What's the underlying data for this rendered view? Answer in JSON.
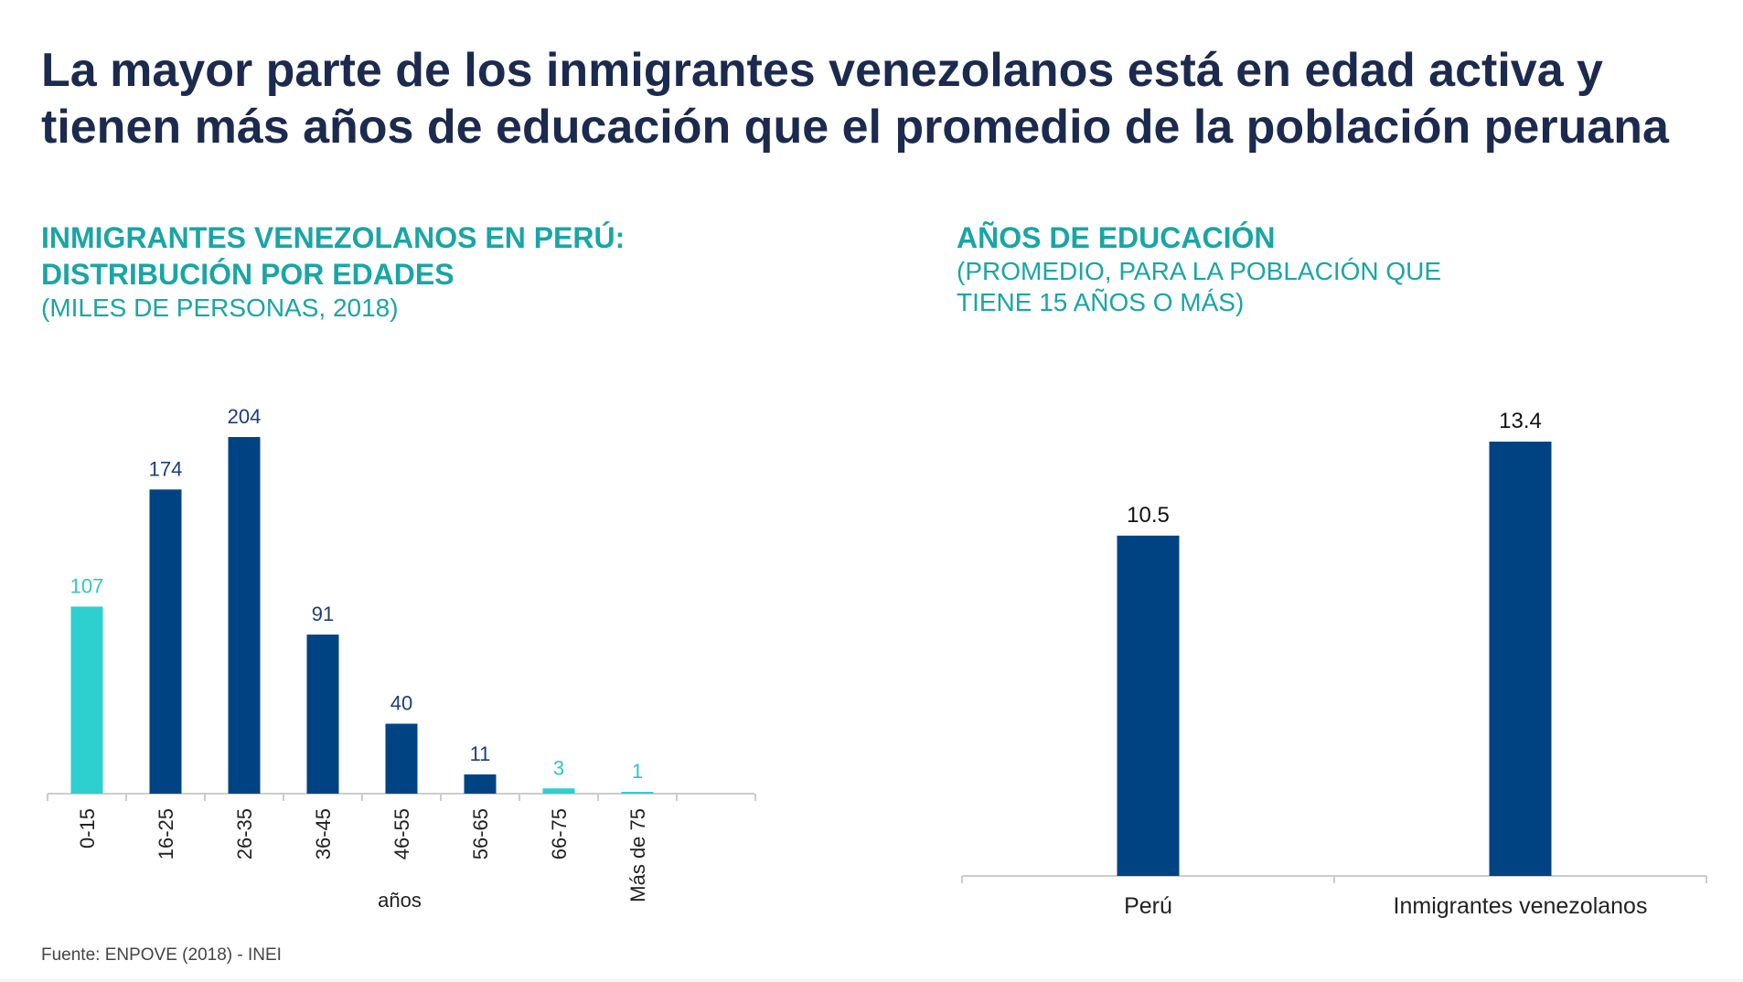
{
  "title": "La mayor parte de los inmigrantes venezolanos está en edad activa y tienen más años de educación que el promedio de la población peruana",
  "source": "Fuente: ENPOVE (2018) - INEI",
  "colors": {
    "title": "#1b2a4e",
    "accent": "#1aa5a5",
    "bar_dark": "#004383",
    "bar_light": "#2ecfcf",
    "label_dark": "#1b3d7a",
    "label_light": "#2ec6c6",
    "axis": "#cccccc"
  },
  "left_panel": {
    "title_line1": "INMIGRANTES VENEZOLANOS EN PERÚ:",
    "title_line2": "DISTRIBUCIÓN POR EDADES",
    "subtitle": "(MILES DE PERSONAS, 2018)"
  },
  "right_panel": {
    "title": "AÑOS DE EDUCACIÓN",
    "subtitle_line1": "(PROMEDIO, PARA LA POBLACIÓN QUE",
    "subtitle_line2": "TIENE 15 AÑOS O MÁS)"
  },
  "chart_data": [
    {
      "type": "bar",
      "title": "INMIGRANTES VENEZOLANOS EN PERÚ: DISTRIBUCIÓN POR EDADES",
      "subtitle": "(MILES DE PERSONAS, 2018)",
      "categories": [
        "0-15",
        "16-25",
        "26-35",
        "36-45",
        "46-55",
        "56-65",
        "66-75",
        "Más de 75"
      ],
      "values": [
        107,
        174,
        204,
        91,
        40,
        11,
        3,
        1
      ],
      "highlight": [
        true,
        false,
        false,
        false,
        false,
        false,
        true,
        true
      ],
      "xlabel": "años",
      "ylabel": "",
      "ylim": [
        0,
        204
      ],
      "grid": false,
      "data_labels": true
    },
    {
      "type": "bar",
      "title": "AÑOS DE EDUCACIÓN",
      "subtitle": "(PROMEDIO, PARA LA POBLACIÓN QUE TIENE 15 AÑOS O MÁS)",
      "categories": [
        "Perú",
        "Inmigrantes venezolanos"
      ],
      "values": [
        10.5,
        13.4
      ],
      "xlabel": "",
      "ylabel": "",
      "ylim": [
        0,
        13.4
      ],
      "grid": false,
      "data_labels": true
    }
  ]
}
